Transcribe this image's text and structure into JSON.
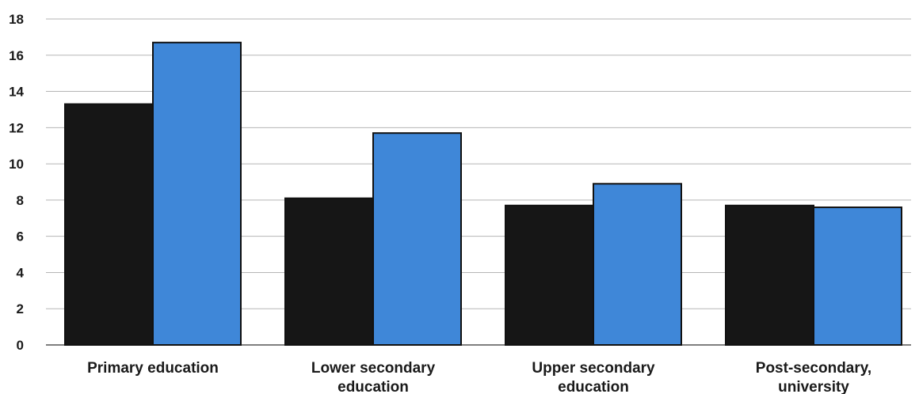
{
  "chart_data": {
    "type": "bar",
    "categories": [
      [
        "Primary education"
      ],
      [
        "Lower secondary",
        "education"
      ],
      [
        "Upper secondary",
        "education"
      ],
      [
        "Post-secondary,",
        "university"
      ]
    ],
    "series": [
      {
        "values": [
          13.3,
          8.1,
          7.7,
          7.7
        ],
        "color": "#161616"
      },
      {
        "values": [
          16.7,
          11.7,
          8.9,
          7.6
        ],
        "color": "#3f87d8"
      }
    ],
    "y_ticks": [
      "0",
      "2",
      "4",
      "6",
      "8",
      "10",
      "12",
      "14",
      "16",
      "18"
    ],
    "ylim": [
      0,
      18
    ],
    "grid": true,
    "legend": "none",
    "title": "",
    "xlabel": "",
    "ylabel": ""
  }
}
